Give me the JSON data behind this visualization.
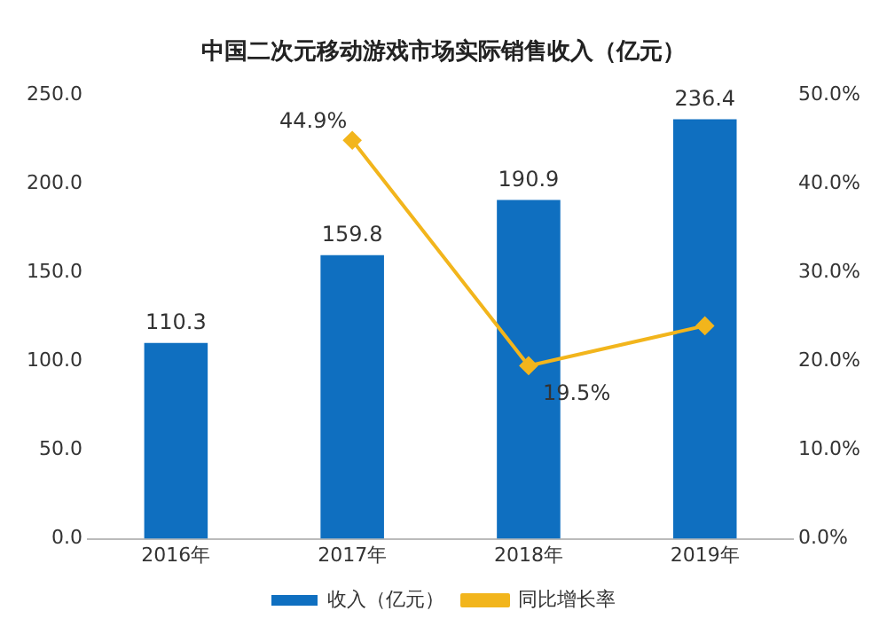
{
  "chart_data": {
    "type": "bar",
    "title": "中国二次元移动游戏市场实际销售收入（亿元）",
    "categories": [
      "2016年",
      "2017年",
      "2018年",
      "2019年"
    ],
    "series": [
      {
        "name": "收入（亿元）",
        "color": "#0f6fc0",
        "values": [
          110.3,
          159.8,
          190.9,
          236.4
        ],
        "value_labels": [
          "110.3",
          "159.8",
          "190.9",
          "236.4"
        ]
      },
      {
        "name": "同比增长率",
        "type": "line",
        "axis": "y2",
        "color": "#f2b51c",
        "values": [
          null,
          44.9,
          19.5,
          24
        ],
        "value_labels": [
          null,
          "44.9%",
          "19.5%",
          null
        ]
      }
    ],
    "ylim": [
      0,
      250
    ],
    "yticks": [
      {
        "value": 0,
        "label": "0.0"
      },
      {
        "value": 50,
        "label": "50.0"
      },
      {
        "value": 100,
        "label": "100.0"
      },
      {
        "value": 150,
        "label": "150.0"
      },
      {
        "value": 200,
        "label": "200.0"
      },
      {
        "value": 250,
        "label": "250.0"
      }
    ],
    "y2lim": [
      0,
      50
    ],
    "y2ticks": [
      {
        "value": 0,
        "label": "0.0%"
      },
      {
        "value": 10,
        "label": "10.0%"
      },
      {
        "value": 20,
        "label": "20.0%"
      },
      {
        "value": 30,
        "label": "30.0%"
      },
      {
        "value": 40,
        "label": "40.0%"
      },
      {
        "value": 50,
        "label": "50.0%"
      }
    ],
    "grid": false,
    "legend": "bottom",
    "marker": "diamond"
  }
}
